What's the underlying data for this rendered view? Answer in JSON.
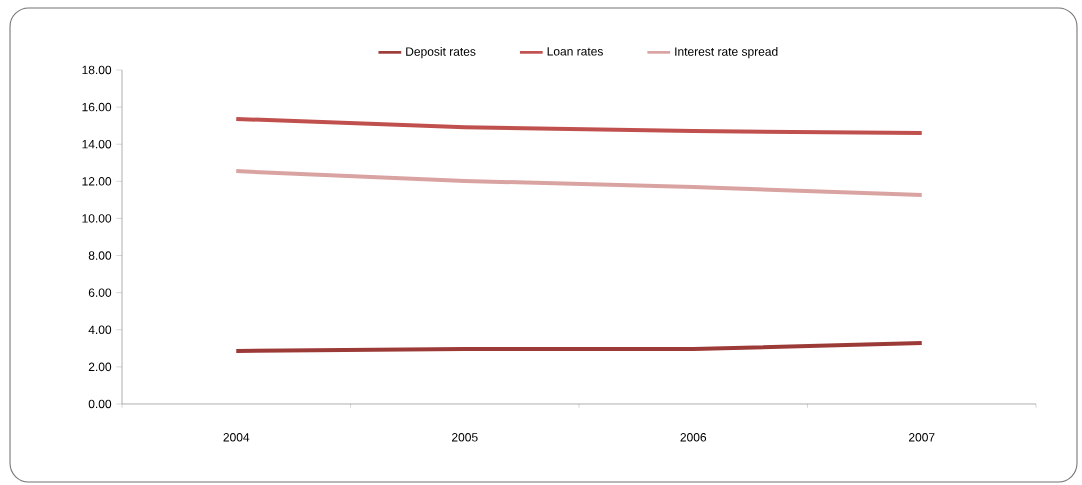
{
  "chart_data": {
    "type": "line",
    "categories": [
      "2004",
      "2005",
      "2006",
      "2007"
    ],
    "series": [
      {
        "name": "Deposit rates",
        "color": "#9b3a36",
        "values": [
          2.86,
          2.96,
          2.96,
          3.29
        ]
      },
      {
        "name": "Loan rates",
        "color": "#c0504d",
        "values": [
          15.36,
          14.92,
          14.71,
          14.6
        ]
      },
      {
        "name": "Interest rate spread",
        "color": "#d9a3a2",
        "values": [
          12.55,
          12.02,
          11.69,
          11.26
        ]
      }
    ],
    "ylim": [
      0,
      18
    ],
    "yticks": [
      {
        "value": 0,
        "label": "0.00"
      },
      {
        "value": 2,
        "label": "2.00"
      },
      {
        "value": 4,
        "label": "4.00"
      },
      {
        "value": 6,
        "label": "6.00"
      },
      {
        "value": 8,
        "label": "8.00"
      },
      {
        "value": 10,
        "label": "10.00"
      },
      {
        "value": 12,
        "label": "12.00"
      },
      {
        "value": 14,
        "label": "14.00"
      },
      {
        "value": 16,
        "label": "16.00"
      },
      {
        "value": 18,
        "label": "18.00"
      }
    ],
    "legend": "top",
    "grid": false
  }
}
